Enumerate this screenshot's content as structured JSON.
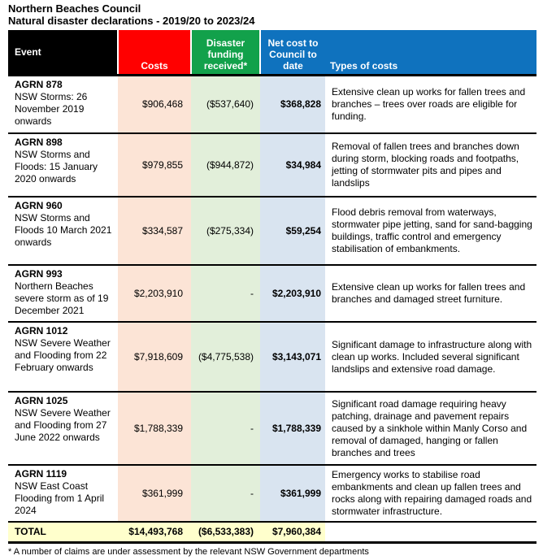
{
  "title": {
    "line1": "Northern Beaches Council",
    "line2": "Natural disaster declarations - 2019/20 to 2023/24"
  },
  "header": {
    "event": "Event",
    "costs": "Costs",
    "funding": "Disaster funding received*",
    "net": "Net cost to Council to date",
    "types": "Types of costs"
  },
  "colors": {
    "header_black": "#000000",
    "header_red": "#ff0000",
    "header_green": "#12a14b",
    "header_blue": "#0f72be",
    "tint_red": "#fce4d6",
    "tint_green": "#e2efda",
    "tint_blue": "#d9e4f0",
    "total_yellow": "#ffffcc"
  },
  "rows": [
    {
      "id": "AGRN 878",
      "event": "NSW Storms: 26 November 2019 onwards",
      "costs": "$906,468",
      "funding": "($537,640)",
      "net": "$368,828",
      "types": "Extensive clean up works for fallen trees and branches – trees over roads are eligible for funding."
    },
    {
      "id": "AGRN 898",
      "event": "NSW Storms and Floods: 15 January 2020 onwards",
      "costs": "$979,855",
      "funding": "($944,872)",
      "net": "$34,984",
      "types": "Removal of fallen trees and branches down during storm, blocking roads and footpaths, jetting of stormwater pits and pipes and landslips"
    },
    {
      "id": "AGRN 960",
      "event": "NSW Storms and Floods 10 March 2021 onwards",
      "costs": "$334,587",
      "funding": "($275,334)",
      "net": "$59,254",
      "types": "Flood debris removal from waterways, stormwater pipe jetting, sand for sand-bagging buildings, traffic control and emergency stabilisation of embankments."
    },
    {
      "id": "AGRN 993",
      "event": "Northern Beaches severe storm as of 19 December 2021",
      "costs": "$2,203,910",
      "funding": "-",
      "net": "$2,203,910",
      "types": "Extensive clean up works for fallen trees and branches and damaged street furniture."
    },
    {
      "id": "AGRN 1012",
      "event": "NSW Severe Weather and Flooding from 22 February onwards",
      "costs": "$7,918,609",
      "funding": "($4,775,538)",
      "net": "$3,143,071",
      "types": "Significant damage to infrastructure along with clean up works. Included several significant landslips and extensive road damage."
    },
    {
      "id": "AGRN 1025",
      "event": "NSW Severe Weather and Flooding from 27 June 2022 onwards",
      "costs": "$1,788,339",
      "funding": "-",
      "net": "$1,788,339",
      "types": "Significant road damage requiring heavy patching, drainage and pavement repairs caused by a sinkhole within Manly Corso and removal of damaged, hanging or fallen branches and trees"
    },
    {
      "id": "AGRN 1119",
      "event": "NSW East Coast Flooding from 1 April 2024",
      "costs": "$361,999",
      "funding": "-",
      "net": "$361,999",
      "types": "Emergency works to stabilise road embankments and clean up fallen trees and rocks along with repairing damaged roads and stormwater infrastructure."
    }
  ],
  "total": {
    "label": "TOTAL",
    "costs": "$14,493,768",
    "funding": "($6,533,383)",
    "net": "$7,960,384"
  },
  "footnote": "* A number of claims are under assessment by the relevant NSW Government departments"
}
